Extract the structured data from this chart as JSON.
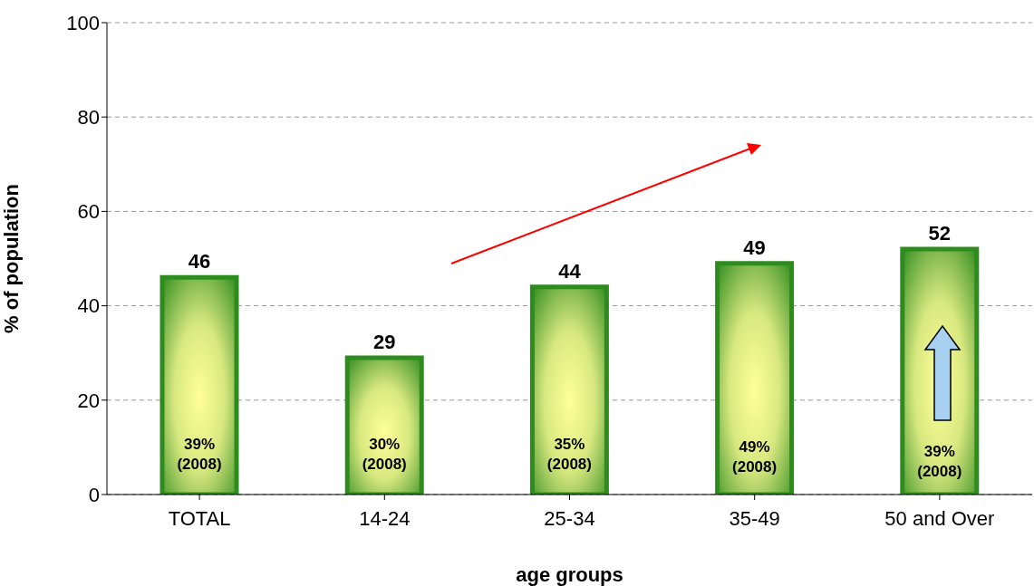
{
  "chart_data": {
    "type": "bar",
    "xlabel": "age groups",
    "ylabel": "% of population",
    "categories": [
      "TOTAL",
      "14-24",
      "25-34",
      "35-49",
      "50 and Over"
    ],
    "values": [
      46,
      29,
      44,
      49,
      52
    ],
    "color": "#2e8b1e",
    "ylim": [
      0,
      100
    ],
    "yticks": [
      0,
      20,
      40,
      60,
      80,
      100
    ],
    "grid": "y",
    "data_labels": true,
    "annotations": [
      "39% (2008)",
      "30% (2008)",
      "35% (2008)",
      "49% (2008)",
      "39% (2008)"
    ]
  }
}
